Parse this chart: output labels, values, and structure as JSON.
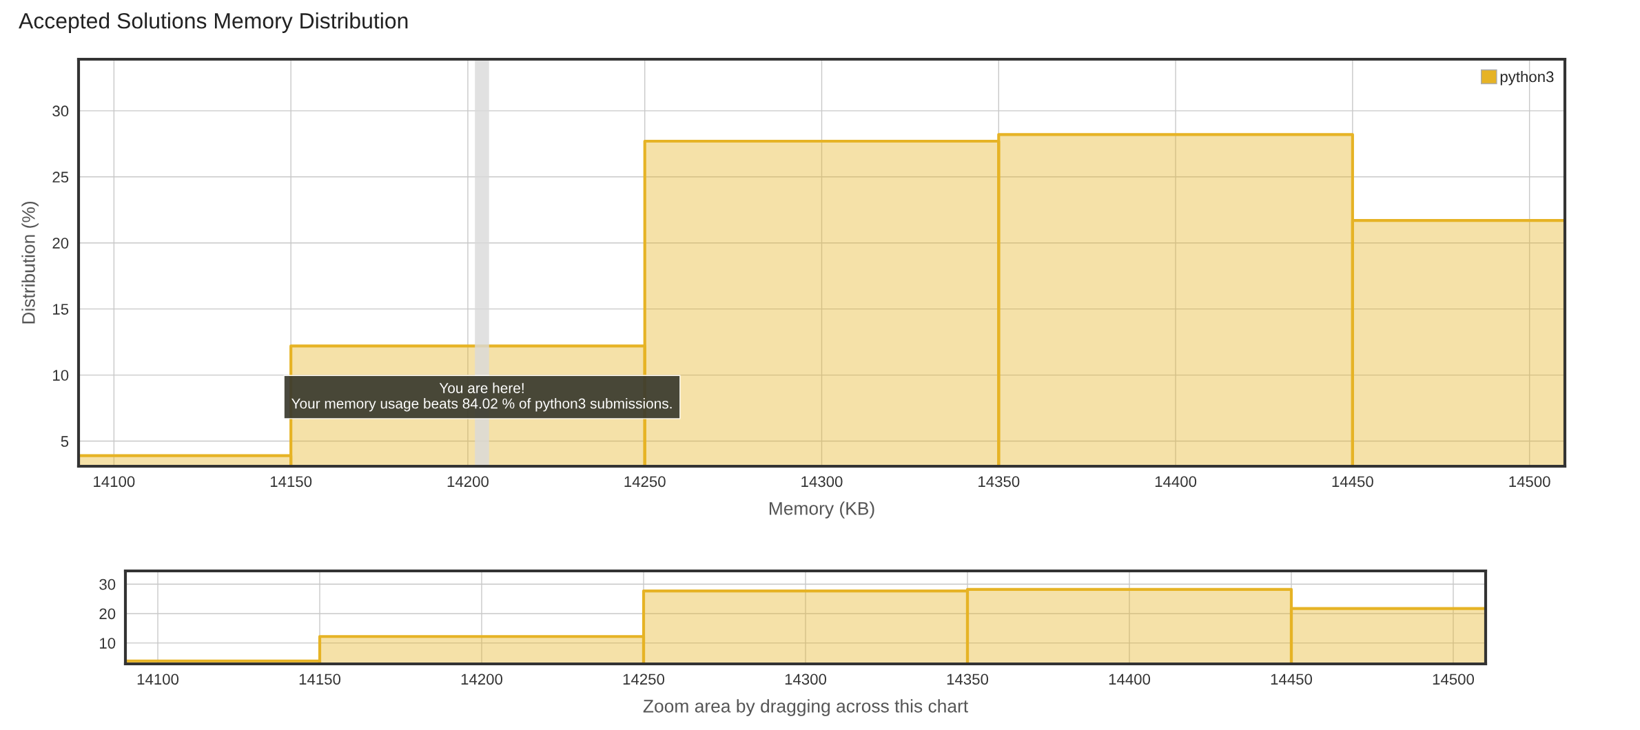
{
  "chart_data": [
    {
      "type": "histogram",
      "title": "Accepted Solutions Memory Distribution",
      "xlabel": "Memory (KB)",
      "ylabel": "Distribution (%)",
      "bins": [
        14090,
        14150,
        14250,
        14350,
        14450,
        14510
      ],
      "series": [
        {
          "name": "python3",
          "color": "#e6b325",
          "values": [
            3.9,
            12.2,
            27.7,
            28.2,
            21.7
          ]
        }
      ],
      "xlim": [
        14090,
        14510
      ],
      "xticks": [
        14100,
        14150,
        14200,
        14250,
        14300,
        14350,
        14400,
        14450,
        14500
      ],
      "ylim": [
        3.1,
        33.9
      ],
      "yticks": [
        5,
        10,
        15,
        20,
        25,
        30
      ],
      "grid": true,
      "legend": "top right",
      "bands": [
        {
          "axis": "x",
          "from": 14202,
          "to": 14206,
          "label": "You are here!\nYour memory usage beats 84.02 % of python3 submissions.",
          "color": "#d9d9d9"
        }
      ]
    },
    {
      "type": "histogram",
      "xlabel": "Zoom area by dragging across this chart",
      "bins": [
        14090,
        14150,
        14250,
        14350,
        14450,
        14510
      ],
      "series": [
        {
          "color": "#e6b325",
          "values": [
            3.9,
            12.2,
            27.7,
            28.2,
            21.7
          ]
        }
      ],
      "xlim": [
        14090,
        14510
      ],
      "xticks": [
        14100,
        14150,
        14200,
        14250,
        14300,
        14350,
        14400,
        14450,
        14500
      ],
      "ylim": [
        2.9,
        34.5
      ],
      "yticks": [
        10,
        20,
        30
      ],
      "grid": true
    }
  ]
}
